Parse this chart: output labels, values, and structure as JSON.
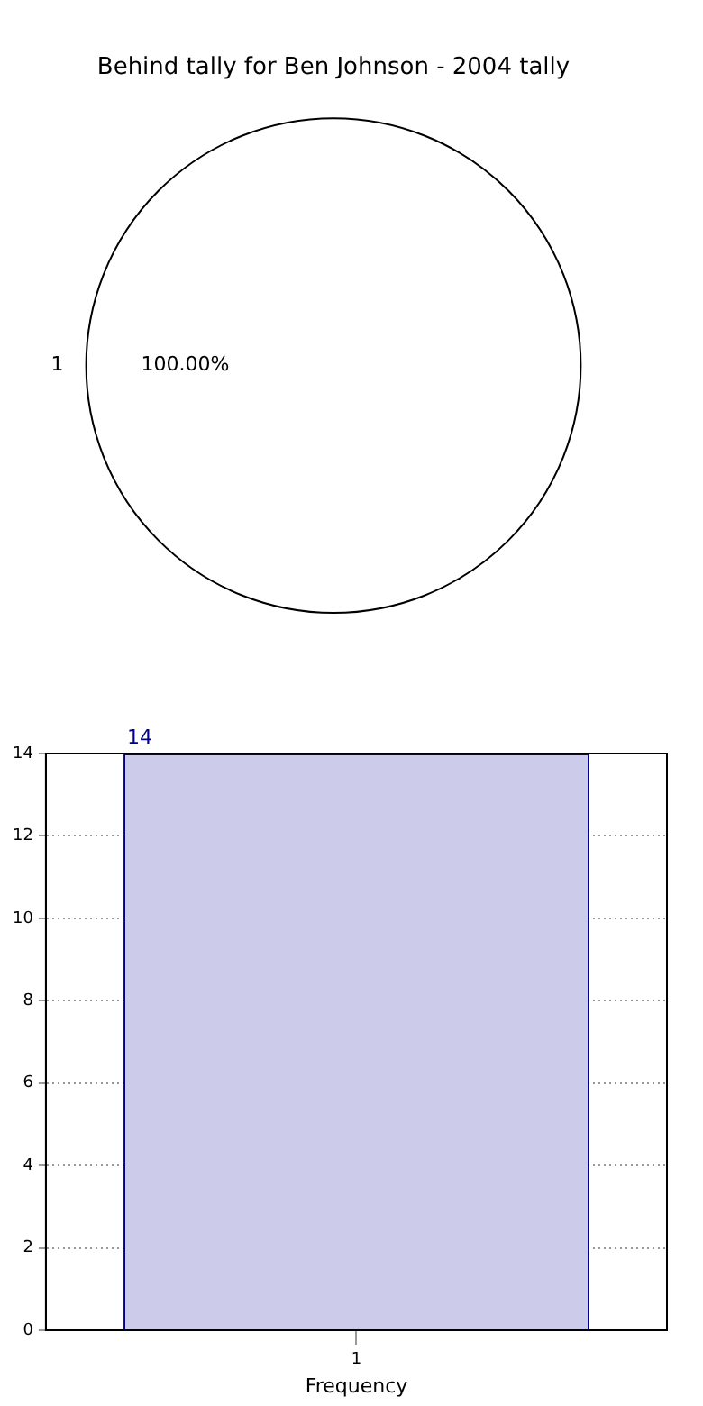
{
  "chart_data": [
    {
      "type": "pie",
      "title": "Behind tally for Ben Johnson - 2004 tally",
      "categories": [
        "1"
      ],
      "values": [
        100
      ],
      "colors": [
        "#ffffff"
      ],
      "value_labels": [
        "100.00%"
      ]
    },
    {
      "type": "bar",
      "xlabel": "Frequency",
      "categories": [
        "1"
      ],
      "values": [
        14
      ],
      "color": "#ccccea",
      "ylim": [
        0,
        14
      ],
      "yticks": [
        0,
        2,
        4,
        6,
        8,
        10,
        12,
        14
      ],
      "grid": true,
      "data_labels": true
    }
  ]
}
